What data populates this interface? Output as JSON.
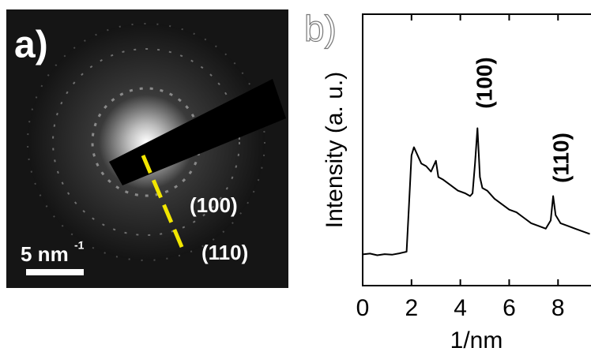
{
  "image_panel": {
    "label": "a)",
    "scale_bar_text": "5 nm",
    "scale_bar_superscript": "-1",
    "ring_labels": [
      "(100)",
      "(110)"
    ]
  },
  "chart_data": {
    "type": "line",
    "panel_label": "b)",
    "x_label": "1/nm",
    "y_label": "Intensity (a. u.)",
    "x": [
      0,
      0.3,
      0.6,
      0.9,
      1.2,
      1.5,
      1.8,
      1.9,
      2.0,
      2.1,
      2.2,
      2.4,
      2.6,
      2.8,
      3.0,
      3.1,
      3.3,
      3.6,
      3.9,
      4.2,
      4.4,
      4.5,
      4.6,
      4.7,
      4.8,
      4.9,
      5.1,
      5.4,
      5.7,
      6.0,
      6.3,
      6.6,
      6.9,
      7.2,
      7.5,
      7.7,
      7.8,
      7.9,
      8.1,
      8.4,
      8.7,
      9.0,
      9.3
    ],
    "series": [
      {
        "color": "#000000",
        "values": [
          11.5,
          11.8,
          11.2,
          11.6,
          11.4,
          11.9,
          12.5,
          30,
          48,
          51,
          49,
          45,
          44,
          42,
          46,
          40,
          39,
          37,
          35,
          34,
          33,
          34,
          45,
          58,
          40,
          36,
          35,
          32,
          30,
          28,
          27,
          25,
          23,
          22,
          21,
          24,
          33,
          26,
          23,
          22,
          21,
          20,
          19
        ]
      }
    ],
    "annotations": [
      "(100)",
      "(110)"
    ],
    "xlim": [
      0,
      9.35
    ],
    "xticks": [
      0,
      2,
      4,
      6,
      8
    ],
    "ylim": [
      0,
      100
    ]
  }
}
